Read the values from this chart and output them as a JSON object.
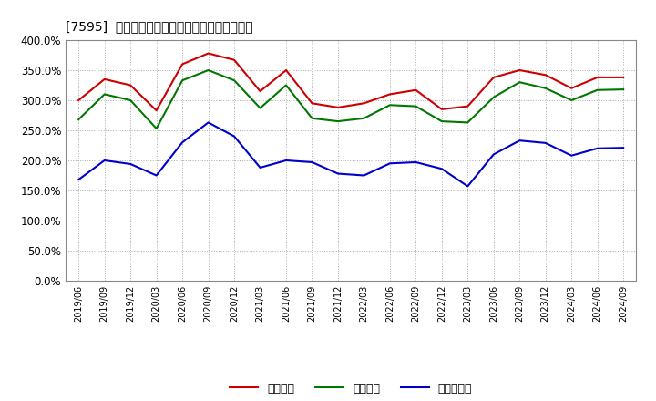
{
  "title": "[7595]  流動比率、当座比率、現预金比率の推移",
  "x_labels": [
    "2019/06",
    "2019/09",
    "2019/12",
    "2020/03",
    "2020/06",
    "2020/09",
    "2020/12",
    "2021/03",
    "2021/06",
    "2021/09",
    "2021/12",
    "2022/03",
    "2022/06",
    "2022/09",
    "2022/12",
    "2023/03",
    "2023/06",
    "2023/09",
    "2023/12",
    "2024/03",
    "2024/06",
    "2024/09"
  ],
  "ryudo": [
    300,
    335,
    325,
    283,
    360,
    378,
    367,
    315,
    350,
    295,
    288,
    295,
    310,
    317,
    285,
    290,
    338,
    350,
    342,
    320,
    338,
    338
  ],
  "touza": [
    268,
    310,
    300,
    253,
    333,
    350,
    333,
    287,
    325,
    270,
    265,
    270,
    292,
    290,
    265,
    263,
    305,
    330,
    320,
    300,
    317,
    318
  ],
  "genyo": [
    168,
    200,
    194,
    175,
    230,
    263,
    240,
    188,
    200,
    197,
    178,
    175,
    195,
    197,
    186,
    157,
    210,
    233,
    229,
    208,
    220,
    221
  ],
  "ryudo_color": "#cc0000",
  "touza_color": "#007700",
  "genyo_color": "#0000cc",
  "ylim": [
    0,
    400
  ],
  "yticks": [
    0,
    50,
    100,
    150,
    200,
    250,
    300,
    350,
    400
  ],
  "bg_color": "#ffffff",
  "grid_color": "#aaaaaa",
  "legend_label0": "流動比率",
  "legend_label1": "当座比率",
  "legend_label2": "現预金比率"
}
